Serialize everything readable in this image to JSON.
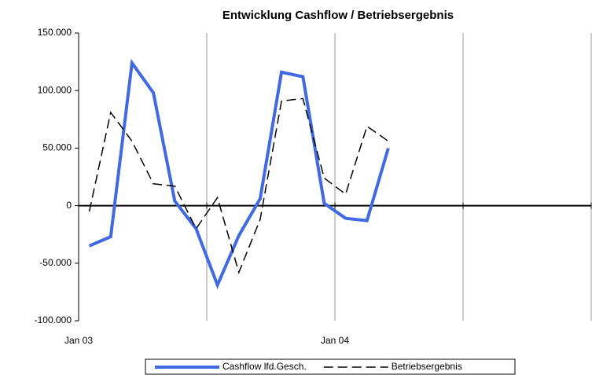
{
  "chart_data": {
    "type": "line",
    "title": "Entwicklung Cashflow / Betriebsergebnis",
    "categories": [
      "Jan 03",
      null,
      null,
      null,
      null,
      null,
      null,
      null,
      null,
      null,
      null,
      null,
      "Jan 04",
      null,
      null,
      null,
      null,
      null,
      null,
      null,
      null,
      null,
      null,
      null
    ],
    "series": [
      {
        "name": "Cashflow lfd.Gesch.",
        "color": "#4169e1",
        "dash": false,
        "values": [
          -35000,
          -27000,
          124000,
          98000,
          4000,
          -20000,
          -69000,
          -26000,
          6000,
          116000,
          112000,
          2000,
          -11000,
          -13000,
          50000,
          null,
          null,
          null,
          null,
          null,
          null,
          null,
          null,
          null
        ]
      },
      {
        "name": "Betriebsergebnis",
        "color": "#000000",
        "dash": true,
        "values": [
          -5000,
          81000,
          56000,
          19000,
          17000,
          -20000,
          7000,
          -58000,
          -12000,
          91000,
          93000,
          24000,
          10000,
          69000,
          56000,
          null,
          null,
          null,
          null,
          null,
          null,
          null,
          null,
          null
        ]
      }
    ],
    "ylim": [
      -100000,
      150000
    ],
    "yticks": [
      {
        "value": -100000,
        "label": "-100.000"
      },
      {
        "value": -50000,
        "label": "-50.000"
      },
      0,
      {
        "value": 50000,
        "label": "50.000"
      },
      {
        "value": 100000,
        "label": "100.000"
      },
      {
        "value": 150000,
        "label": "150.000"
      }
    ],
    "xgrid_every": 6,
    "legend": "bottom"
  }
}
